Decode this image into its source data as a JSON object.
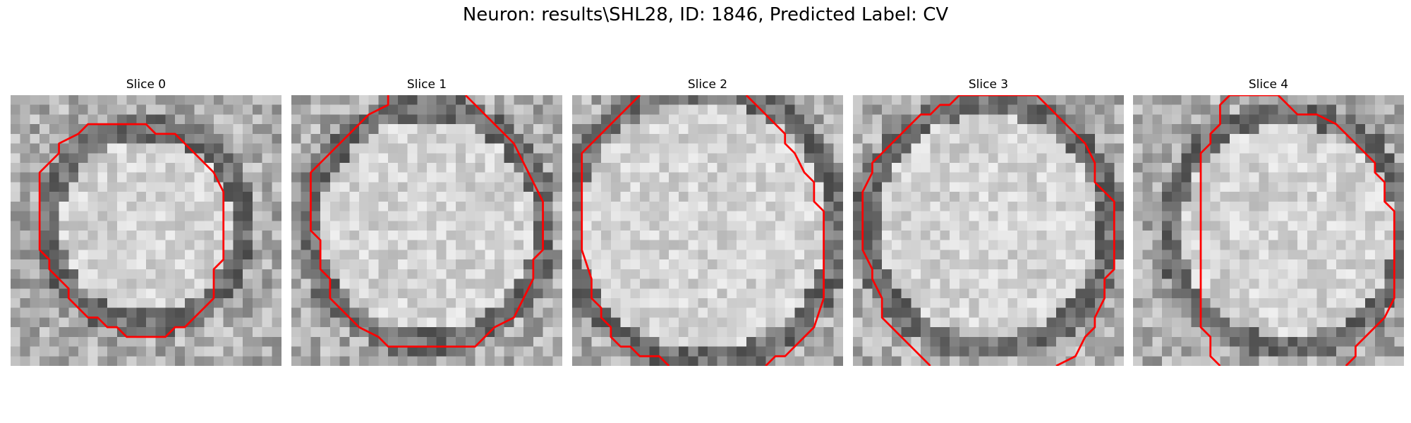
{
  "figure": {
    "title": "Neuron: results\\SHL28, ID: 1846, Predicted Label: CV"
  },
  "contour_color": "#ff0000",
  "image_colormap": "gray",
  "grid_resolution": 28,
  "panels": [
    {
      "title": "Slice 0",
      "contour": [
        [
          11,
          3
        ],
        [
          14,
          3
        ],
        [
          15,
          4
        ],
        [
          17,
          4
        ],
        [
          21,
          8
        ],
        [
          22,
          10
        ],
        [
          22,
          17
        ],
        [
          21,
          18
        ],
        [
          21,
          21
        ],
        [
          18,
          24
        ],
        [
          17,
          24
        ],
        [
          16,
          25
        ],
        [
          12,
          25
        ],
        [
          11,
          24
        ],
        [
          10,
          24
        ],
        [
          9,
          23
        ],
        [
          8,
          23
        ],
        [
          6,
          21
        ],
        [
          6,
          20
        ],
        [
          4,
          18
        ],
        [
          4,
          17
        ],
        [
          3,
          16
        ],
        [
          3,
          8
        ],
        [
          5,
          6
        ],
        [
          5,
          5
        ],
        [
          7,
          4
        ],
        [
          8,
          3
        ],
        [
          11,
          3
        ]
      ]
    },
    {
      "title": "Slice 1",
      "contour": [
        [
          10,
          0
        ],
        [
          10,
          1
        ],
        [
          8,
          2
        ],
        [
          7,
          3
        ],
        [
          5,
          5
        ],
        [
          4,
          6
        ],
        [
          2,
          8
        ],
        [
          2,
          14
        ],
        [
          3,
          15
        ],
        [
          3,
          18
        ],
        [
          4,
          19
        ],
        [
          4,
          21
        ],
        [
          6,
          23
        ],
        [
          7,
          24
        ],
        [
          9,
          25
        ],
        [
          10,
          26
        ],
        [
          14,
          26
        ],
        [
          16,
          26
        ],
        [
          19,
          26
        ],
        [
          20,
          25
        ],
        [
          21,
          24
        ],
        [
          23,
          23
        ],
        [
          24,
          21
        ],
        [
          25,
          19
        ],
        [
          25,
          17
        ],
        [
          26,
          16
        ],
        [
          26,
          11
        ],
        [
          25,
          9
        ],
        [
          24,
          7
        ],
        [
          23,
          5
        ],
        [
          21,
          3
        ],
        [
          20,
          2
        ],
        [
          19,
          1
        ],
        [
          18,
          0
        ]
      ]
    },
    {
      "title": "Slice 2",
      "contour": [
        [
          7,
          0
        ],
        [
          5,
          2
        ],
        [
          4,
          3
        ],
        [
          3,
          4
        ],
        [
          2,
          5
        ],
        [
          1,
          6
        ],
        [
          1,
          16
        ],
        [
          2,
          19
        ],
        [
          2,
          21
        ],
        [
          3,
          22
        ],
        [
          3,
          23
        ],
        [
          4,
          24
        ],
        [
          4,
          25
        ],
        [
          5,
          26
        ],
        [
          6,
          26
        ],
        [
          7,
          27
        ],
        [
          9,
          27
        ],
        [
          10,
          28
        ]
      ]
    },
    {
      "title": "Slice 2",
      "contour": [
        [
          18,
          0
        ],
        [
          19,
          1
        ],
        [
          20,
          2
        ],
        [
          22,
          4
        ],
        [
          22,
          5
        ],
        [
          23,
          6
        ],
        [
          24,
          8
        ],
        [
          25,
          9
        ],
        [
          25,
          11
        ],
        [
          26,
          12
        ],
        [
          26,
          21
        ],
        [
          25,
          24
        ],
        [
          24,
          25
        ],
        [
          23,
          26
        ],
        [
          22,
          27
        ],
        [
          21,
          27
        ],
        [
          20,
          28
        ]
      ]
    },
    {
      "title": "Slice 3",
      "contour": [
        [
          8,
          28
        ],
        [
          6,
          26
        ],
        [
          4,
          24
        ],
        [
          3,
          23
        ],
        [
          3,
          21
        ],
        [
          2,
          19
        ],
        [
          2,
          18
        ],
        [
          1,
          16
        ],
        [
          1,
          10
        ],
        [
          2,
          8
        ],
        [
          2,
          7
        ],
        [
          3,
          6
        ],
        [
          4,
          5
        ],
        [
          6,
          3
        ],
        [
          7,
          2
        ],
        [
          8,
          2
        ],
        [
          9,
          1
        ],
        [
          10,
          1
        ],
        [
          11,
          0
        ],
        [
          19,
          0
        ],
        [
          20,
          1
        ],
        [
          21,
          2
        ],
        [
          22,
          3
        ],
        [
          23,
          4
        ],
        [
          24,
          5
        ],
        [
          25,
          7
        ],
        [
          25,
          9
        ],
        [
          26,
          10
        ],
        [
          27,
          11
        ],
        [
          27,
          18
        ],
        [
          26,
          19
        ],
        [
          26,
          21
        ],
        [
          25,
          23
        ],
        [
          25,
          24
        ],
        [
          24,
          25
        ],
        [
          23,
          27
        ],
        [
          21,
          28
        ]
      ]
    },
    {
      "title": "Slice 4",
      "contour": [
        [
          9,
          28
        ],
        [
          8,
          27
        ],
        [
          8,
          25
        ],
        [
          7,
          24
        ],
        [
          7,
          6
        ],
        [
          8,
          5
        ],
        [
          8,
          4
        ],
        [
          9,
          3
        ],
        [
          9,
          1
        ],
        [
          10,
          0
        ],
        [
          15,
          0
        ],
        [
          16,
          1
        ],
        [
          17,
          2
        ],
        [
          19,
          2
        ],
        [
          21,
          3
        ],
        [
          22,
          4
        ],
        [
          23,
          5
        ],
        [
          24,
          6
        ],
        [
          25,
          7
        ],
        [
          25,
          8
        ],
        [
          26,
          9
        ],
        [
          26,
          11
        ],
        [
          27,
          12
        ],
        [
          27,
          15
        ],
        [
          27,
          21
        ],
        [
          26,
          23
        ],
        [
          25,
          24
        ],
        [
          24,
          25
        ],
        [
          23,
          26
        ],
        [
          23,
          27
        ],
        [
          22,
          28
        ]
      ]
    }
  ]
}
